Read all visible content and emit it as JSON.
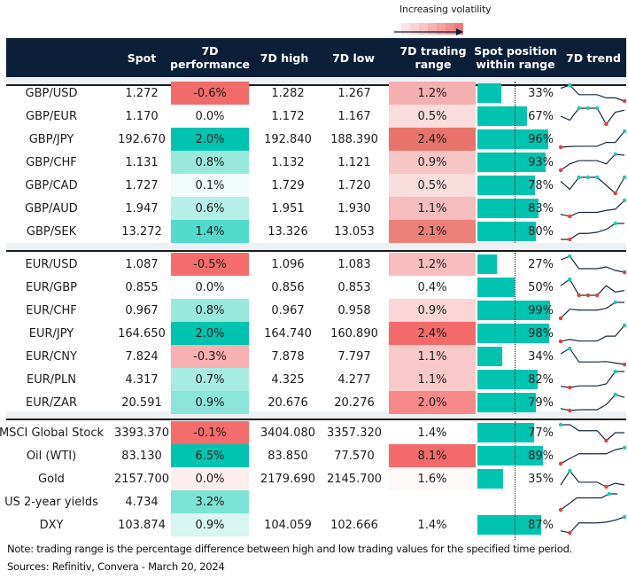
{
  "legend": {
    "label": "Increasing volatility",
    "gradient_colors": [
      "#fbe4e4",
      "#f9d4d4",
      "#f7c4c4",
      "#f4b2b2",
      "#f2a0a0",
      "#ef8e8e",
      "#ed7b7b"
    ]
  },
  "header": {
    "columns": [
      {
        "key": "label",
        "label": ""
      },
      {
        "key": "spot",
        "label": "Spot"
      },
      {
        "key": "perf",
        "label": "7D performance"
      },
      {
        "key": "high",
        "label": "7D high"
      },
      {
        "key": "low",
        "label": "7D low"
      },
      {
        "key": "range",
        "label": "7D trading range"
      },
      {
        "key": "position",
        "label": "Spot position within range"
      },
      {
        "key": "trend",
        "label": "7D trend"
      }
    ]
  },
  "colors": {
    "header_bg": "#0c1f38",
    "bar": "#00c4b0",
    "trend_line": "#1a2a3a",
    "trend_high": "#1fc9b5",
    "trend_low": "#e0403a"
  },
  "groups": [
    {
      "rows": [
        {
          "label": "GBP/USD",
          "spot": "1.272",
          "perf": "-0.6%",
          "perf_color": "#f26b6b",
          "high": "1.282",
          "low": "1.267",
          "range": "1.2%",
          "range_color": "#f4b0b0",
          "position": 33,
          "position_label": "33%",
          "trend": [
            4,
            5,
            2,
            2,
            2,
            1,
            1,
            0
          ],
          "trend_highs": [
            1
          ],
          "trend_lows": [
            7
          ]
        },
        {
          "label": "GBP/EUR",
          "spot": "1.170",
          "perf": "0.0%",
          "perf_color": "#ffffff",
          "high": "1.172",
          "low": "1.167",
          "range": "0.5%",
          "range_color": "#f9dcdc",
          "position": 67,
          "position_label": "67%",
          "trend": [
            2,
            1,
            4,
            4,
            4,
            0,
            3,
            3.5
          ],
          "trend_highs": [
            2,
            3,
            4
          ],
          "trend_lows": [
            5
          ]
        },
        {
          "label": "GBP/JPY",
          "spot": "192.670",
          "perf": "2.0%",
          "perf_color": "#00c4b0",
          "high": "192.840",
          "low": "188.390",
          "range": "2.4%",
          "range_color": "#e8736a",
          "position": 96,
          "position_label": "96%",
          "trend": [
            0,
            0.2,
            0.3,
            0.3,
            0.3,
            1.5,
            1.5,
            5
          ],
          "trend_highs": [
            7
          ],
          "trend_lows": [
            0
          ]
        },
        {
          "label": "GBP/CHF",
          "spot": "1.131",
          "perf": "0.8%",
          "perf_color": "#99e8de",
          "high": "1.132",
          "low": "1.121",
          "range": "0.9%",
          "range_color": "#f6c6c6",
          "position": 93,
          "position_label": "93%",
          "trend": [
            0,
            2,
            3,
            3,
            3,
            2,
            5,
            4.7
          ],
          "trend_highs": [
            6
          ],
          "trend_lows": [
            0
          ]
        },
        {
          "label": "GBP/CAD",
          "spot": "1.727",
          "perf": "0.1%",
          "perf_color": "#f0fbfa",
          "high": "1.729",
          "low": "1.720",
          "range": "0.5%",
          "range_color": "#f9dcdc",
          "position": 78,
          "position_label": "78%",
          "trend": [
            3,
            1,
            4,
            4,
            4,
            2,
            0,
            4
          ],
          "trend_highs": [
            2,
            3,
            4,
            7
          ],
          "trend_lows": [
            6
          ]
        },
        {
          "label": "GBP/AUD",
          "spot": "1.947",
          "perf": "0.6%",
          "perf_color": "#b6efe8",
          "high": "1.951",
          "low": "1.930",
          "range": "1.1%",
          "range_color": "#f5bdbd",
          "position": 83,
          "position_label": "83%",
          "trend": [
            0.5,
            0,
            1,
            1,
            1,
            1.5,
            1.8,
            4
          ],
          "trend_highs": [
            7
          ],
          "trend_lows": [
            1
          ]
        },
        {
          "label": "GBP/SEK",
          "spot": "13.272",
          "perf": "1.4%",
          "perf_color": "#52dacb",
          "high": "13.326",
          "low": "13.053",
          "range": "2.1%",
          "range_color": "#ea8078",
          "position": 80,
          "position_label": "80%",
          "trend": [
            0,
            0,
            1.5,
            1.5,
            1.8,
            2.5,
            4,
            4
          ],
          "trend_highs": [
            6
          ],
          "trend_lows": [
            1
          ]
        }
      ]
    },
    {
      "rows": [
        {
          "label": "EUR/USD",
          "spot": "1.087",
          "perf": "-0.5%",
          "perf_color": "#f46c6c",
          "high": "1.096",
          "low": "1.083",
          "range": "1.2%",
          "range_color": "#f9bdbd",
          "position": 27,
          "position_label": "27%",
          "trend": [
            4,
            5,
            1.5,
            1.5,
            1.5,
            2,
            1,
            0.5
          ],
          "trend_highs": [
            1
          ],
          "trend_lows": [
            7
          ]
        },
        {
          "label": "EUR/GBP",
          "spot": "0.855",
          "perf": "0.0%",
          "perf_color": "#fbfefe",
          "high": "0.856",
          "low": "0.853",
          "range": "0.4%",
          "range_color": "#ffffff",
          "position": 50,
          "position_label": "50%",
          "trend": [
            3,
            5,
            0,
            0,
            0,
            3,
            1,
            1.5
          ],
          "trend_highs": [
            1
          ],
          "trend_lows": [
            2,
            3,
            4
          ]
        },
        {
          "label": "EUR/CHF",
          "spot": "0.967",
          "perf": "0.8%",
          "perf_color": "#99e8de",
          "high": "0.967",
          "low": "0.958",
          "range": "0.9%",
          "range_color": "#fcd6d6",
          "position": 99,
          "position_label": "99%",
          "trend": [
            0,
            2,
            1.8,
            1.8,
            1.8,
            2.2,
            3.5,
            3.5
          ],
          "trend_highs": [
            6
          ],
          "trend_lows": [
            0
          ]
        },
        {
          "label": "EUR/JPY",
          "spot": "164.650",
          "perf": "2.0%",
          "perf_color": "#00c4b0",
          "high": "164.740",
          "low": "160.890",
          "range": "2.4%",
          "range_color": "#f46a6a",
          "position": 98,
          "position_label": "98%",
          "trend": [
            0,
            0.5,
            0.1,
            0.1,
            0.1,
            1.3,
            1.3,
            4
          ],
          "trend_highs": [
            7
          ],
          "trend_lows": [
            0
          ]
        },
        {
          "label": "EUR/CNY",
          "spot": "7.824",
          "perf": "-0.3%",
          "perf_color": "#f9b0b0",
          "high": "7.878",
          "low": "7.797",
          "range": "1.1%",
          "range_color": "#f9c8c8",
          "position": 34,
          "position_label": "34%",
          "trend": [
            3,
            4.5,
            0.7,
            0.7,
            0.7,
            0.8,
            0.4,
            0
          ],
          "trend_highs": [
            1
          ],
          "trend_lows": [
            7
          ]
        },
        {
          "label": "EUR/PLN",
          "spot": "4.317",
          "perf": "0.7%",
          "perf_color": "#a6ece3",
          "high": "4.325",
          "low": "4.277",
          "range": "1.1%",
          "range_color": "#f9c8c8",
          "position": 82,
          "position_label": "82%",
          "trend": [
            0.3,
            0,
            0.4,
            0.4,
            0.4,
            0.9,
            4,
            4
          ],
          "trend_highs": [
            6
          ],
          "trend_lows": [
            1
          ]
        },
        {
          "label": "EUR/ZAR",
          "spot": "20.591",
          "perf": "0.9%",
          "perf_color": "#8be5da",
          "high": "20.676",
          "low": "20.276",
          "range": "2.0%",
          "range_color": "#f68a8a",
          "position": 79,
          "position_label": "79%",
          "trend": [
            0.5,
            0,
            0.2,
            0.2,
            0.2,
            1.5,
            4,
            3.3
          ],
          "trend_highs": [
            6
          ],
          "trend_lows": [
            1
          ]
        }
      ]
    },
    {
      "rows": [
        {
          "label": "MSCI Global Stock",
          "spot": "3393.370",
          "perf": "-0.1%",
          "perf_color": "#f46c6c",
          "high": "3404.080",
          "low": "3357.320",
          "range": "1.4%",
          "range_color": "#ffffff",
          "position": 77,
          "position_label": "77%",
          "trend": [
            4,
            4,
            2.5,
            2.5,
            2.5,
            0,
            2,
            2
          ],
          "trend_highs": [
            0
          ],
          "trend_lows": [
            5
          ]
        },
        {
          "label": "Oil (WTI)",
          "spot": "83.130",
          "perf": "6.5%",
          "perf_color": "#00c4b0",
          "high": "83.850",
          "low": "77.570",
          "range": "8.1%",
          "range_color": "#f46a6a",
          "position": 89,
          "position_label": "89%",
          "trend": [
            0,
            1.3,
            2.5,
            2.5,
            2.5,
            2.5,
            3.5,
            4
          ],
          "trend_highs": [
            7
          ],
          "trend_lows": [
            0
          ]
        },
        {
          "label": "Gold",
          "spot": "2157.700",
          "perf": "0.0%",
          "perf_color": "#fdeeee",
          "high": "2179.690",
          "low": "2145.700",
          "range": "1.6%",
          "range_color": "#fff8f8",
          "position": 35,
          "position_label": "35%",
          "trend": [
            1,
            5,
            1.8,
            1.8,
            1.8,
            0.5,
            1.5,
            1
          ],
          "trend_highs": [
            1
          ],
          "trend_lows": [
            5
          ]
        },
        {
          "label": "US 2-year yields",
          "spot": "4.734",
          "perf": "3.2%",
          "perf_color": "#7ee3d7",
          "high": "",
          "low": "",
          "range": "",
          "range_color": "#ffffff",
          "position": null,
          "position_label": "",
          "trend": [
            0,
            1.5,
            3,
            3,
            3,
            3,
            4,
            4
          ],
          "trend_highs": [
            6
          ],
          "trend_lows": [
            0
          ],
          "trend_points": 7
        },
        {
          "label": "DXY",
          "spot": "103.874",
          "perf": "0.9%",
          "perf_color": "#d7f5f1",
          "high": "104.059",
          "low": "102.666",
          "range": "1.4%",
          "range_color": "#ffffff",
          "position": 87,
          "position_label": "87%",
          "trend": [
            0.5,
            0,
            2.5,
            2.5,
            2.5,
            2.7,
            3.2,
            4
          ],
          "trend_highs": [
            7
          ],
          "trend_lows": [
            1
          ]
        }
      ]
    }
  ],
  "footer": {
    "note": "Note: trading range is the percentage difference between high and low trading values for the specified time period.",
    "sources": "Sources: Refinitiv, Convera - March 20, 2024"
  }
}
